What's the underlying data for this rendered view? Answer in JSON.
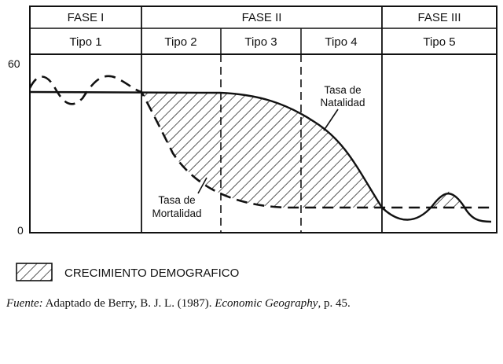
{
  "header": {
    "phases": [
      "FASE I",
      "FASE II",
      "FASE III"
    ],
    "types": [
      "Tipo 1",
      "Tipo 2",
      "Tipo 3",
      "Tipo 4",
      "Tipo 5"
    ]
  },
  "axis": {
    "top_value": "60",
    "bottom_value": "0"
  },
  "labels": {
    "birth_rate_line1": "Tasa de",
    "birth_rate_line2": "Natalidad",
    "death_rate_line1": "Tasa de",
    "death_rate_line2": "Mortalidad"
  },
  "legend": {
    "label": "CRECIMIENTO DEMOGRAFICO"
  },
  "source": {
    "prefix": "Fuente:",
    "text": " Adaptado de Berry, B. J. L. (1987). ",
    "title": "Economic Geography",
    "suffix": ", p. 45."
  }
}
